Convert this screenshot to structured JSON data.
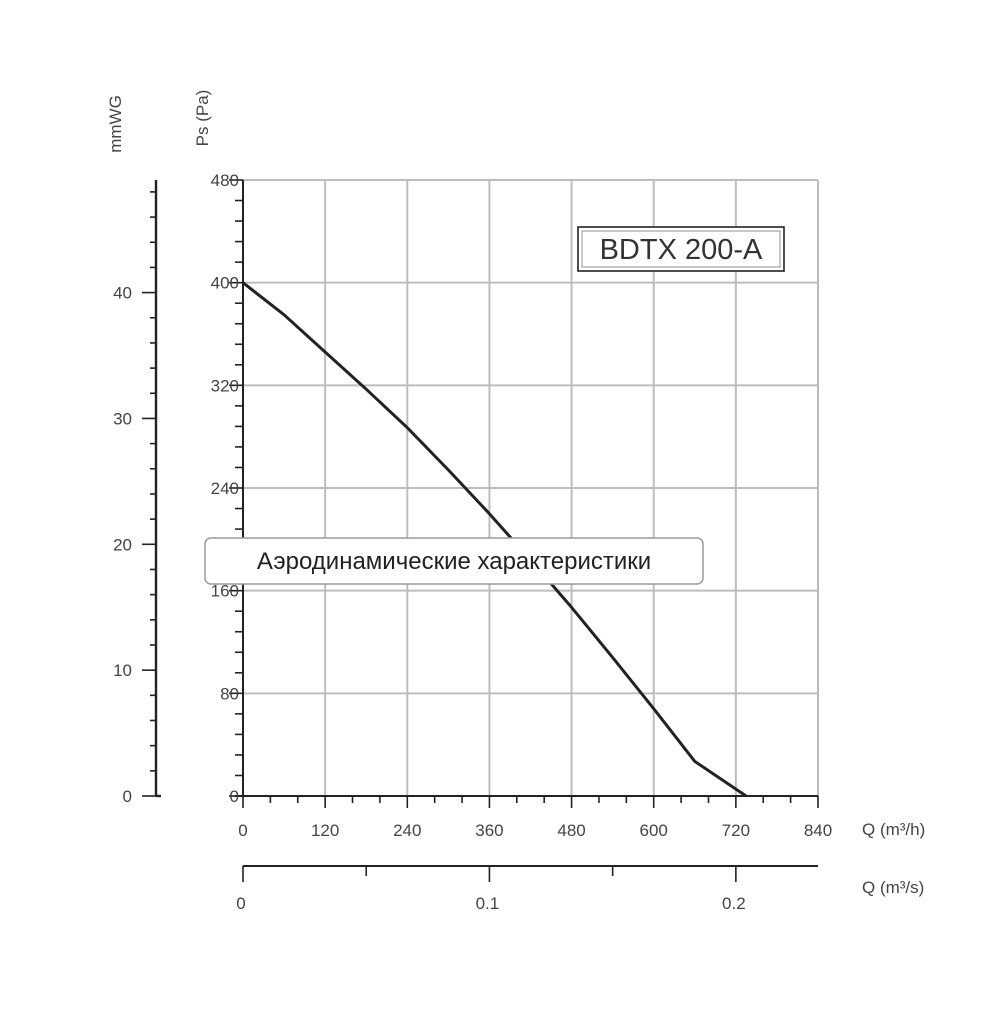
{
  "chart_data": {
    "type": "line",
    "title": "BDTX 200-A",
    "caption": "Аэродинамические характеристики",
    "xlabel": "Q (m³/h)",
    "x2label": "Q (m³/s)",
    "ylabel": "Ps (Pa)",
    "y2label": "mmWG",
    "xlim": [
      0,
      840
    ],
    "ylim": [
      0,
      480
    ],
    "x_ticks": [
      "0",
      "120",
      "240",
      "360",
      "480",
      "600",
      "720",
      "840"
    ],
    "y_ticks": [
      "0",
      "80",
      "160",
      "240",
      "320",
      "400",
      "480"
    ],
    "x2_ticks": [
      "0",
      "0.1",
      "0.2"
    ],
    "y2_ticks": [
      "0",
      "10",
      "20",
      "30",
      "40"
    ],
    "grid": true,
    "series": [
      {
        "x": [
          0,
          60,
          120,
          180,
          240,
          300,
          360,
          420,
          480,
          540,
          600,
          660,
          735
        ],
        "y": [
          400,
          375,
          346,
          317,
          287,
          254,
          220,
          184,
          147,
          108,
          68,
          27,
          0
        ]
      }
    ]
  },
  "colors": {
    "grid": "#bdbdbd",
    "axis": "#222222",
    "curve": "#222222",
    "caption_border": "#9a9a9a"
  }
}
